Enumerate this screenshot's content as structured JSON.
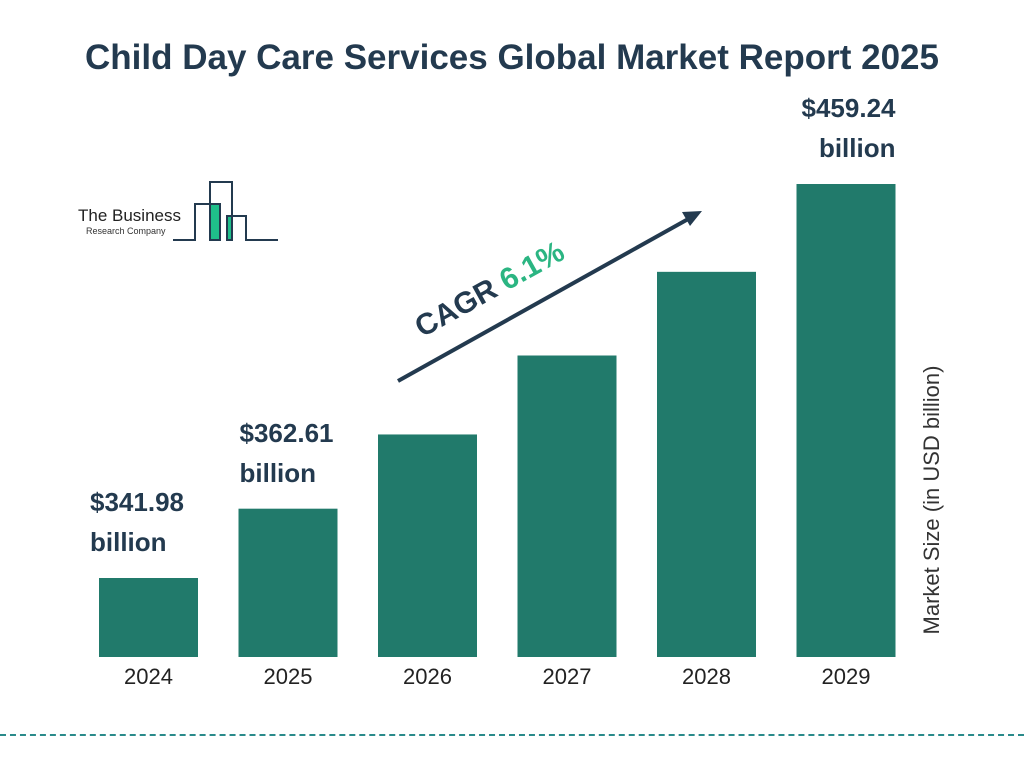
{
  "title": "Child Day Care Services Global Market Report 2025",
  "logo": {
    "line1": "The Business",
    "line2": "Research Company"
  },
  "cagr": {
    "label": "CAGR",
    "value": "6.1%"
  },
  "colors": {
    "bar": "#217a6b",
    "title": "#233a4f",
    "cagr": "#2bb582",
    "logo_accent": "#1fbf8a"
  },
  "chart_data": {
    "type": "bar",
    "title": "Child Day Care Services Global Market Report 2025",
    "xlabel": "",
    "ylabel": "Market Size (in USD billion)",
    "categories": [
      "2024",
      "2025",
      "2026",
      "2027",
      "2028",
      "2029"
    ],
    "values": [
      341.98,
      362.61,
      384.7,
      408.2,
      433.1,
      459.24
    ],
    "data_labels": [
      {
        "category": "2024",
        "value": "$341.98",
        "unit": "billion"
      },
      {
        "category": "2025",
        "value": "$362.61",
        "unit": "billion"
      },
      {
        "category": "2029",
        "value": "$459.24",
        "unit": "billion"
      }
    ],
    "grid": false,
    "legend": "none"
  }
}
